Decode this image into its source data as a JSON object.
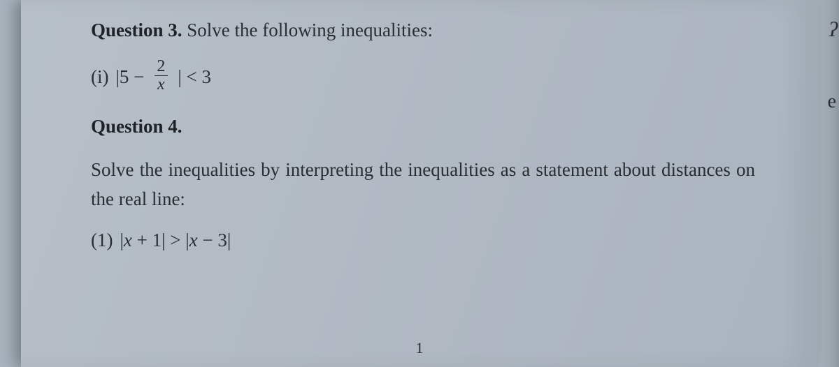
{
  "question3": {
    "label": "Question 3.",
    "prompt": "Solve the following inequalities:",
    "item_marker": "(i)",
    "expr_open": "|5 −",
    "expr_frac_num": "2",
    "expr_frac_den": "x",
    "expr_close": "| < 3"
  },
  "question4": {
    "label": "Question 4.",
    "prompt": "Solve the inequalities by interpreting the inequalities as a statement about distances on the real line:",
    "item_marker": "(1)",
    "expr": "|x + 1| > |x − 3|"
  },
  "page_number": "1",
  "colors": {
    "page_bg_start": "#b7c0c9",
    "page_bg_end": "#aab4bf",
    "outer_bg": "#a8b3bd",
    "text": "#2a2e33"
  },
  "typography": {
    "title_fontsize": 27,
    "body_fontsize": 27,
    "page_num_fontsize": 22,
    "font_family": "Georgia, Times New Roman, serif"
  }
}
